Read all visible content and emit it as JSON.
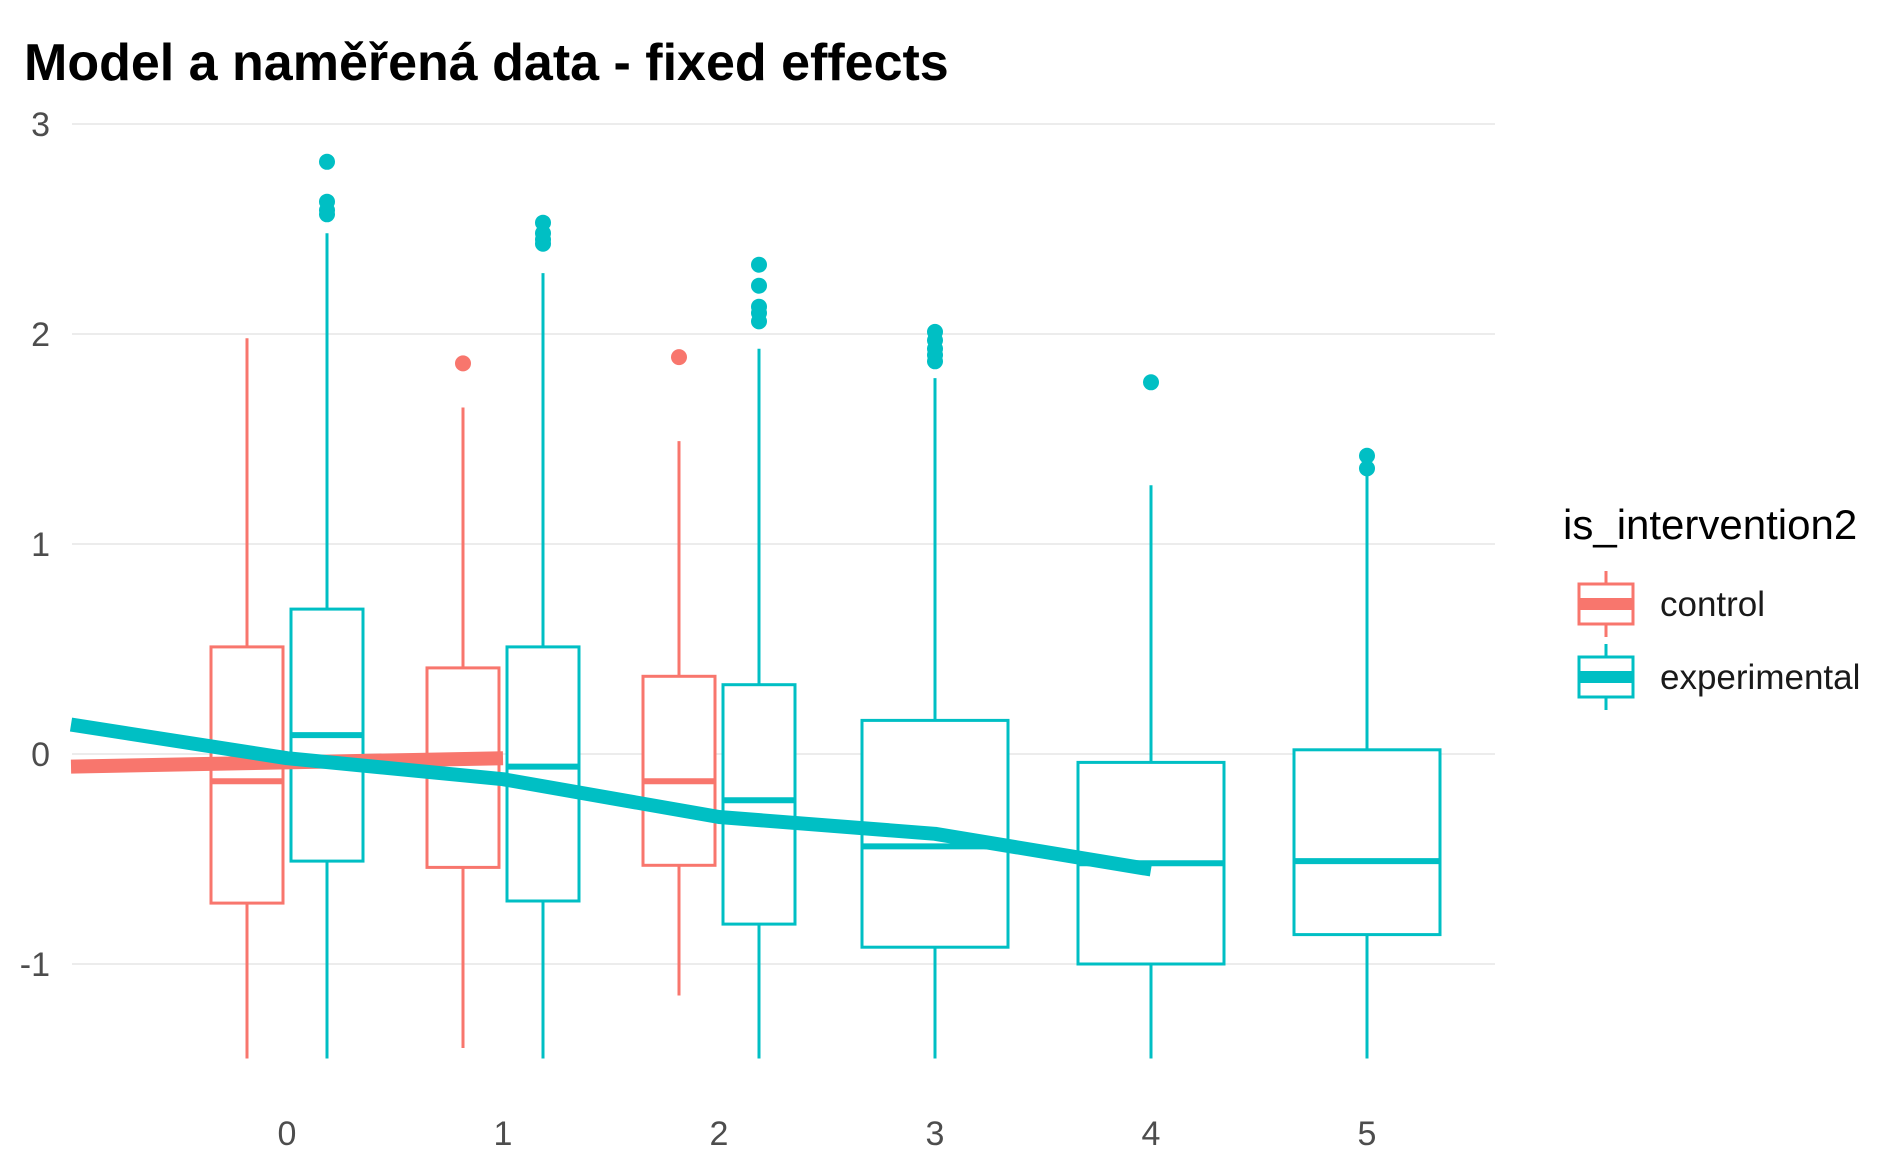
{
  "chart_data": {
    "type": "box",
    "title": "Model a naměřená data - fixed effects",
    "xlabel": "",
    "ylabel": "",
    "categories": [
      "0",
      "1",
      "2",
      "3",
      "4",
      "5"
    ],
    "yticks": [
      "-1",
      "0",
      "1",
      "2",
      "3"
    ],
    "ylim": [
      -1.45,
      3.05
    ],
    "xlim": [
      -1.0,
      5.55
    ],
    "grid": "horizontal",
    "legend": {
      "title": "is_intervention2",
      "position": "right",
      "entries": [
        "control",
        "experimental"
      ]
    },
    "series": [
      {
        "name": "control",
        "color": "#F8766D",
        "boxes": [
          {
            "x": 0,
            "lower": -1.45,
            "q1": -0.71,
            "median": -0.13,
            "q3": 0.51,
            "upper": 1.98,
            "outliers": []
          },
          {
            "x": 1,
            "lower": -1.4,
            "q1": -0.54,
            "median": -0.02,
            "q3": 0.41,
            "upper": 1.65,
            "outliers": [
              1.86
            ]
          },
          {
            "x": 2,
            "lower": -1.15,
            "q1": -0.53,
            "median": -0.13,
            "q3": 0.37,
            "upper": 1.49,
            "outliers": [
              1.89
            ]
          }
        ],
        "model_line": {
          "x": [
            -1.0,
            1.0
          ],
          "y": [
            -0.06,
            -0.02
          ]
        }
      },
      {
        "name": "experimental",
        "color": "#00BFC4",
        "boxes": [
          {
            "x": 0,
            "lower": -1.45,
            "q1": -0.51,
            "median": 0.09,
            "q3": 0.69,
            "upper": 2.48,
            "outliers": [
              2.57,
              2.59,
              2.63,
              2.82
            ]
          },
          {
            "x": 1,
            "lower": -1.45,
            "q1": -0.7,
            "median": -0.06,
            "q3": 0.51,
            "upper": 2.29,
            "outliers": [
              2.43,
              2.45,
              2.48,
              2.53
            ]
          },
          {
            "x": 2,
            "lower": -1.45,
            "q1": -0.81,
            "median": -0.22,
            "q3": 0.33,
            "upper": 1.93,
            "outliers": [
              2.06,
              2.1,
              2.13,
              2.23,
              2.33
            ]
          },
          {
            "x": 3,
            "lower": -1.45,
            "q1": -0.92,
            "median": -0.44,
            "q3": 0.16,
            "upper": 1.79,
            "outliers": [
              1.87,
              1.9,
              1.93,
              1.97,
              2.01
            ]
          },
          {
            "x": 4,
            "lower": -1.45,
            "q1": -1.0,
            "median": -0.52,
            "q3": -0.04,
            "upper": 1.28,
            "outliers": [
              1.77
            ]
          },
          {
            "x": 5,
            "lower": -1.45,
            "q1": -0.86,
            "median": -0.51,
            "q3": 0.02,
            "upper": 1.33,
            "outliers": [
              1.36,
              1.42
            ]
          }
        ],
        "model_line": {
          "x": [
            -1.0,
            0.0,
            1.0,
            2.0,
            3.0,
            4.0
          ],
          "y": [
            0.14,
            -0.02,
            -0.12,
            -0.3,
            -0.38,
            -0.55
          ]
        }
      }
    ]
  }
}
